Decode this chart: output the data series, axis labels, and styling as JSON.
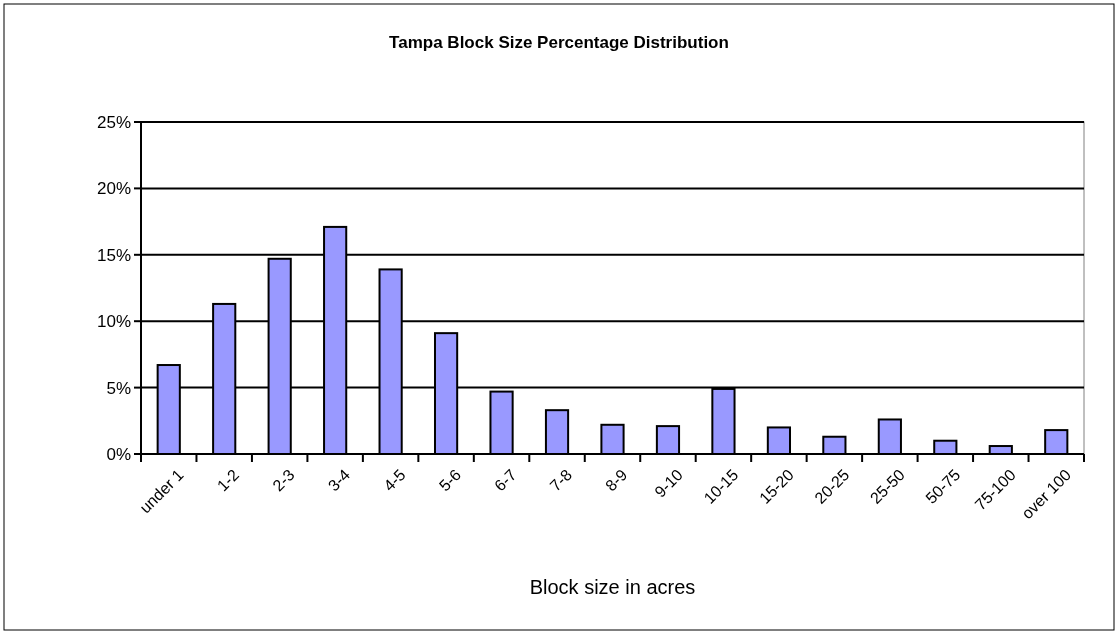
{
  "chart_data": {
    "type": "bar",
    "title": "Tampa Block Size Percentage Distribution",
    "xlabel": "Block size in acres",
    "categories": [
      "under 1",
      "1-2",
      "2-3",
      "3-4",
      "4-5",
      "5-6",
      "6-7",
      "7-8",
      "8-9",
      "9-10",
      "10-15",
      "15-20",
      "20-25",
      "25-50",
      "50-75",
      "75-100",
      "over 100"
    ],
    "values": [
      6.7,
      11.3,
      14.7,
      17.1,
      13.9,
      9.1,
      4.7,
      3.3,
      2.2,
      2.1,
      4.9,
      2.0,
      1.3,
      2.6,
      1.0,
      0.6,
      1.8
    ],
    "color": "#9999ff",
    "ylim": [
      0,
      25
    ],
    "yticks": [
      {
        "value": 0,
        "label": "0%"
      },
      {
        "value": 5,
        "label": "5%"
      },
      {
        "value": 10,
        "label": "10%"
      },
      {
        "value": 15,
        "label": "15%"
      },
      {
        "value": 20,
        "label": "20%"
      },
      {
        "value": 25,
        "label": "25%"
      }
    ],
    "grid": "y"
  }
}
